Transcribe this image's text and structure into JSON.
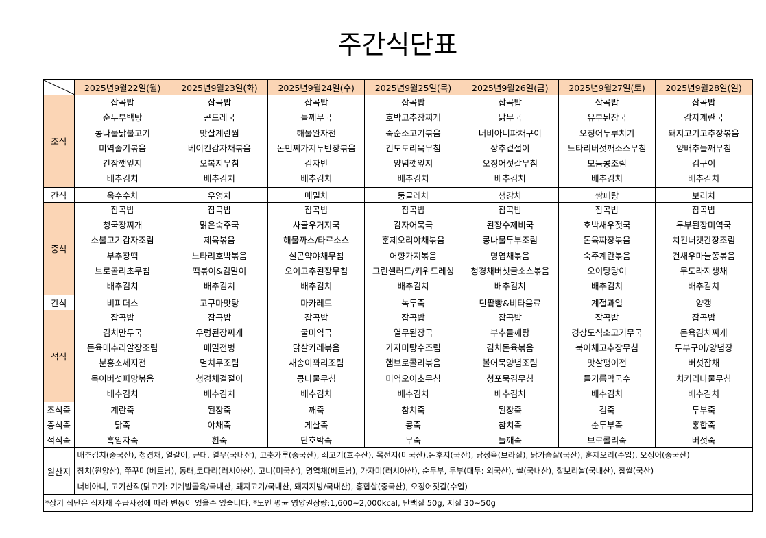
{
  "title": "주간식단표",
  "headers": [
    "2025년9월22일(월)",
    "2025년9월23일(화)",
    "2025년9월24일(수)",
    "2025년9월25일(목)",
    "2025년9월26일(금)",
    "2025년9월27일(토)",
    "2025년9월28일(일)"
  ],
  "rows": [
    {
      "label": "조식",
      "cells": [
        [
          "잡곡밥",
          "순두부백탕",
          "콩나물닭불고기",
          "미역줄기볶음",
          "간장깻잎지",
          "배추김치"
        ],
        [
          "잡곡밥",
          "곤드레국",
          "맛살계란찜",
          "베이컨감자채볶음",
          "오복지무침",
          "배추김치"
        ],
        [
          "잡곡밥",
          "들깨무국",
          "해물완자전",
          "돈민찌가지두반장볶음",
          "김자반",
          "배추김치"
        ],
        [
          "잡곡밥",
          "호박고추장찌개",
          "죽순소고기볶음",
          "건도토리묵무침",
          "양념깻잎지",
          "배추김치"
        ],
        [
          "잡곡밥",
          "닭무국",
          "너비아니파채구이",
          "상추겉절이",
          "오징어젓갈무침",
          "배추김치"
        ],
        [
          "잡곡밥",
          "유부된장국",
          "오징어두루치기",
          "느타리버섯깨소스무침",
          "모듬콩조림",
          "배추김치"
        ],
        [
          "잡곡밥",
          "감자계란국",
          "돼지고기고추장볶음",
          "양배추들깨무침",
          "김구이",
          "배추김치"
        ]
      ]
    },
    {
      "label": "간식",
      "cells": [
        "옥수수차",
        "우엉차",
        "메밀차",
        "둥글레차",
        "생강차",
        "쌍패탕",
        "보리차"
      ]
    },
    {
      "label": "중식",
      "cells": [
        [
          "잡곡밥",
          "청국장찌개",
          "소불고기감자조림",
          "부추장떡",
          "브로콜리초무침",
          "배추김치"
        ],
        [
          "잡곡밥",
          "맑은숙주국",
          "제육볶음",
          "느타리호박볶음",
          "떡볶이&김말이",
          "배추김치"
        ],
        [
          "잡곡밥",
          "사골우거지국",
          "해물까스/타르소스",
          "실곤약야채무침",
          "오이고추된장무침",
          "배추김치"
        ],
        [
          "잡곡밥",
          "감자어묵국",
          "훈제오리야채볶음",
          "어향가지볶음",
          "그린샐러드/키위드레싱",
          "배추김치"
        ],
        [
          "잡곡밥",
          "된장수제비국",
          "콩나물두부조림",
          "명엽채볶음",
          "청경채버섯굴소스볶음",
          "배추김치"
        ],
        [
          "잡곡밥",
          "호박새우젓국",
          "돈육짜장볶음",
          "숙주계란볶음",
          "오이탕탕이",
          "배추김치"
        ],
        [
          "잡곡밥",
          "두부된장미역국",
          "치킨너겟간장조림",
          "건새우마늘쫑볶음",
          "무도라지생채",
          "배추김치"
        ]
      ]
    },
    {
      "label": "간식",
      "cells": [
        "비피더스",
        "고구마맛탕",
        "마카레트",
        "녹두죽",
        "단팥빵&비타음료",
        "계절과일",
        "양갱"
      ]
    },
    {
      "label": "석식",
      "cells": [
        [
          "잡곡밥",
          "김치만두국",
          "돈육메추리알장조림",
          "분홍소세지전",
          "목이버섯피망볶음",
          "배추김치"
        ],
        [
          "잡곡밥",
          "우렁된장찌개",
          "메밀전병",
          "멸치무조림",
          "청경채겉절이",
          "배추김치"
        ],
        [
          "잡곡밥",
          "굴미역국",
          "닭살카레볶음",
          "새송이꽈리조림",
          "콩나물무침",
          "배추김치"
        ],
        [
          "잡곡밥",
          "열무된장국",
          "가자미탕수조림",
          "햄브로콜리볶음",
          "미역오이초무침",
          "배추김치"
        ],
        [
          "잡곡밥",
          "부추들깨탕",
          "김치돈육볶음",
          "볼어묵양념조림",
          "청포묵김무침",
          "배추김치"
        ],
        [
          "잡곡밥",
          "경상도식소고기무국",
          "북어채고추장무침",
          "맛살팽이전",
          "들기름막국수",
          "배추김치"
        ],
        [
          "잡곡밥",
          "돈육김치찌개",
          "두부구이/양념장",
          "버섯잡채",
          "치커리나물무침",
          "배추김치"
        ]
      ]
    },
    {
      "label": "조식죽",
      "cells": [
        "계란죽",
        "된장죽",
        "깨죽",
        "참치죽",
        "된장죽",
        "김죽",
        "두부죽"
      ]
    },
    {
      "label": "중식죽",
      "cells": [
        "닭죽",
        "야채죽",
        "게살죽",
        "콩죽",
        "참치죽",
        "순두부죽",
        "홍합죽"
      ]
    },
    {
      "label": "석식죽",
      "cells": [
        "흑임자죽",
        "흰죽",
        "단호박죽",
        "무죽",
        "들깨죽",
        "브로콜리죽",
        "버섯죽"
      ]
    }
  ],
  "origin": {
    "label": "원산지",
    "lines": [
      "배추김치(중국산), 청경채, 얼갈이, 근대, 열무(국내산), 고춧가루(중국산), 쇠고기(호주산), 목전지(미국산),돈후지(국산), 닭정육(브라질), 닭가슴살(국산), 훈제오리(수입), 오징어(중국산)",
      "참치(원양산), 쭈꾸미(베트남), 동태,코다리(러시아산), 고니(미국산), 명엽채(베트남), 가자미(러시아산), 순두부, 두부(대두: 외국산), 쌀(국내산), 찰보리쌀(국내산), 찹쌀(국산)",
      "너비아니, 고기산적(닭고기: 기계발골육/국내산, 돼지고기/국내산, 돼지지방/국내산), 홍합살(중국산), 오징어젓갈(수입)"
    ]
  },
  "note": "*상기 식단은 식자재 수급사정에 따라 변동이 있을수 있습니다. *노인 평균 영양권장량:1,600~2,000kcal, 단백질 50g, 지질 30~50g"
}
